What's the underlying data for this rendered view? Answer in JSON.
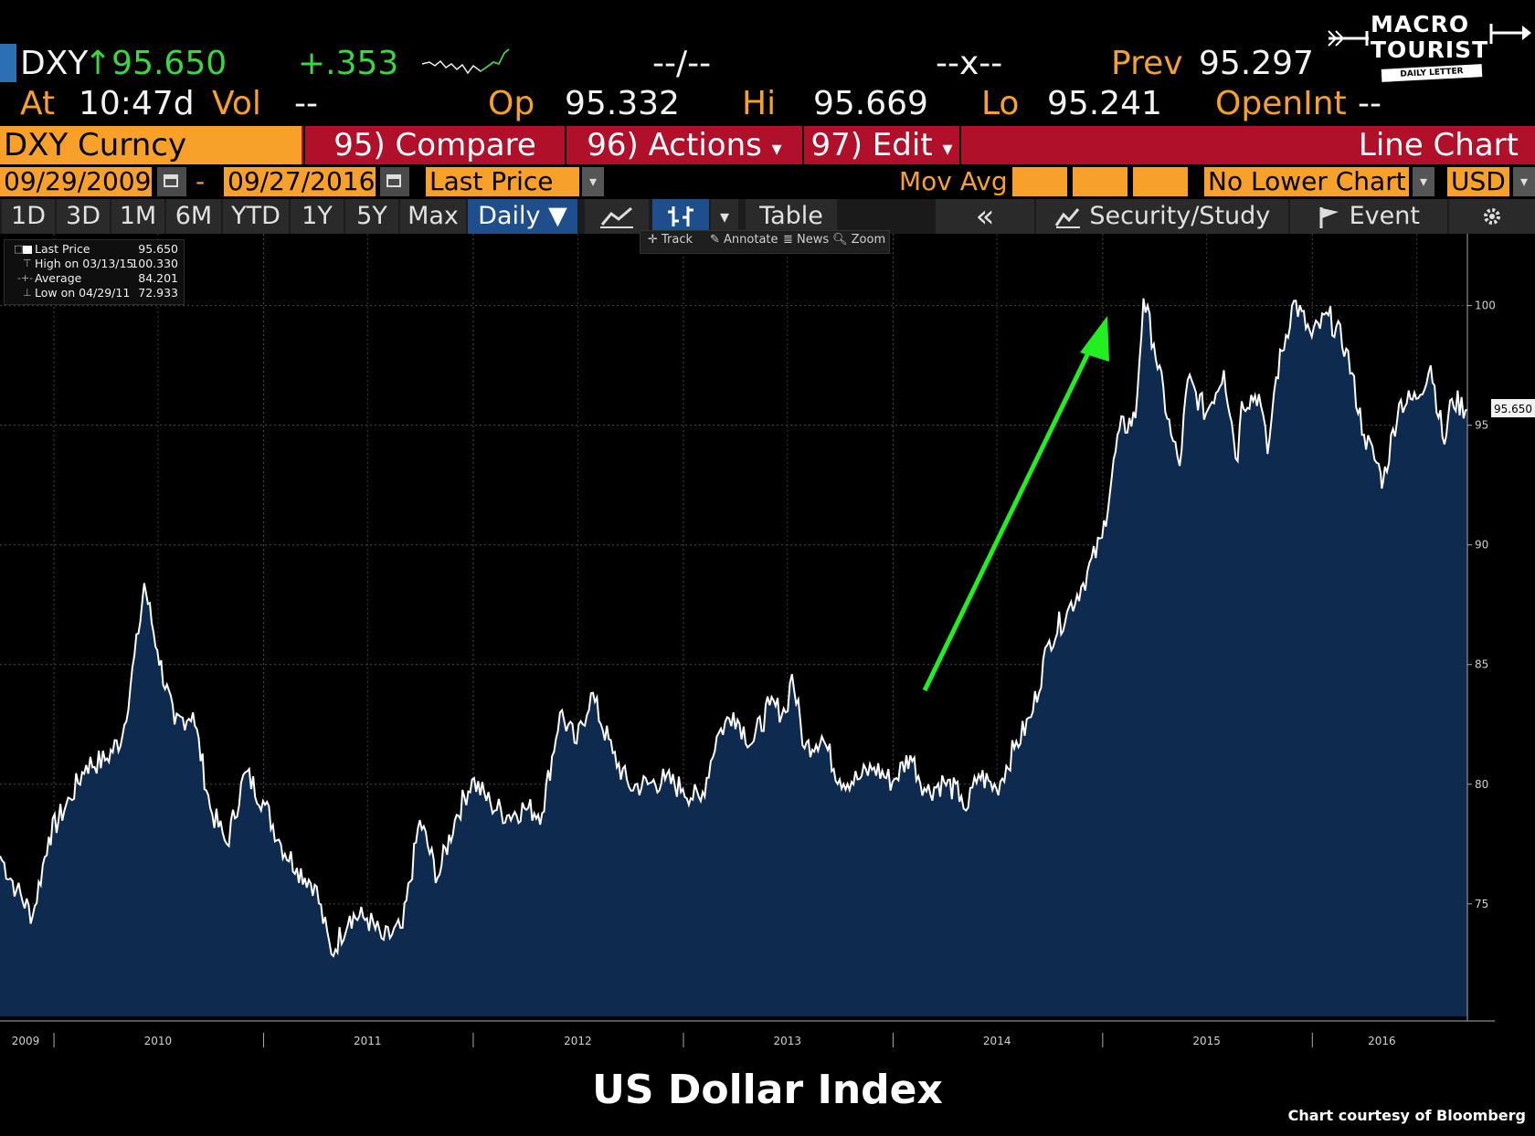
{
  "header": {
    "ticker": "DXY",
    "last": "↑95.650",
    "change": "+.353",
    "bidask": "--/--",
    "size": "--x--",
    "prev_label": "Prev",
    "prev": "95.297",
    "at_label": "At",
    "time": "10:47d",
    "vol_label": "Vol",
    "vol": "--",
    "op_label": "Op",
    "op": "95.332",
    "hi_label": "Hi",
    "hi": "95.669",
    "lo_label": "Lo",
    "lo": "95.241",
    "openint_label": "OpenInt",
    "openint": "--"
  },
  "logo": {
    "line1": "MACRO",
    "line2": "TOURIST",
    "line3": "DAILY LETTER"
  },
  "menubar": {
    "security": "DXY Curncy",
    "compare": "95) Compare",
    "actions": "96) Actions",
    "edit": "97) Edit",
    "chart_type": "Line Chart",
    "dropdown_glyph": "▾"
  },
  "settings": {
    "start_date": "09/29/2009",
    "dash": "-",
    "end_date": "09/27/2016",
    "field": "Last Price",
    "mov_avg": "Mov Avg",
    "lower_chart": "No Lower Chart",
    "currency": "USD",
    "dropdown_glyph": "▾"
  },
  "tabs": {
    "items": [
      "1D",
      "3D",
      "1M",
      "6M",
      "YTD",
      "1Y",
      "5Y",
      "Max"
    ],
    "frequency": "Daily ▼",
    "table": "Table",
    "collapse": "«",
    "security_study": "Security/Study",
    "event": "Event",
    "dropdown_glyph": "▾"
  },
  "tools": {
    "track": "Track",
    "annotate": "Annotate",
    "news": "News",
    "zoom": "Zoom"
  },
  "legend": [
    {
      "symbol": "□",
      "label": "Last Price",
      "value": "95.650"
    },
    {
      "symbol": "⊤",
      "label": "High on 03/13/15",
      "value": "100.330"
    },
    {
      "symbol": "-+-",
      "label": "Average",
      "value": "84.201"
    },
    {
      "symbol": "⊥",
      "label": "Low on 04/29/11",
      "value": "72.933"
    }
  ],
  "colors": {
    "amber": "#f7a12a",
    "green": "#38d843",
    "menu_red": "#b0102a",
    "fill": "#0e2a4e",
    "line": "#ffffff",
    "arrow": "#22ee22"
  },
  "chart_data": {
    "type": "area",
    "title": "US Dollar Index",
    "xlabel": "",
    "ylabel": "",
    "ylim": [
      70.3,
      103
    ],
    "xlim": [
      "2009-09-29",
      "2016-09-27"
    ],
    "x_ticks": [
      "2009",
      "2010",
      "2011",
      "2012",
      "2013",
      "2014",
      "2015",
      "2016"
    ],
    "y_ticks": [
      75,
      80,
      85,
      90,
      95,
      100
    ],
    "last_value_label": "95.650",
    "grid": true,
    "annotation": "green upward arrow pointing to the mid-2014 to early-2015 rally",
    "series": [
      {
        "name": "Last Price",
        "points": [
          [
            "2009-09-29",
            77.0
          ],
          [
            "2009-10-28",
            75.6
          ],
          [
            "2009-11-25",
            74.5
          ],
          [
            "2009-12-23",
            77.8
          ],
          [
            "2010-01-29",
            79.4
          ],
          [
            "2010-02-26",
            80.8
          ],
          [
            "2010-03-31",
            81.0
          ],
          [
            "2010-04-30",
            82.0
          ],
          [
            "2010-05-28",
            86.3
          ],
          [
            "2010-06-07",
            88.4
          ],
          [
            "2010-06-30",
            85.6
          ],
          [
            "2010-07-30",
            82.5
          ],
          [
            "2010-08-31",
            83.0
          ],
          [
            "2010-09-30",
            79.0
          ],
          [
            "2010-10-29",
            77.5
          ],
          [
            "2010-11-30",
            80.5
          ],
          [
            "2010-12-31",
            79.3
          ],
          [
            "2011-01-31",
            77.5
          ],
          [
            "2011-02-28",
            76.5
          ],
          [
            "2011-03-31",
            75.8
          ],
          [
            "2011-04-29",
            72.9
          ],
          [
            "2011-05-31",
            74.5
          ],
          [
            "2011-06-30",
            74.4
          ],
          [
            "2011-07-29",
            73.5
          ],
          [
            "2011-08-31",
            74.0
          ],
          [
            "2011-09-30",
            78.5
          ],
          [
            "2011-10-31",
            76.1
          ],
          [
            "2011-11-30",
            78.5
          ],
          [
            "2011-12-30",
            80.2
          ],
          [
            "2012-01-31",
            79.2
          ],
          [
            "2012-02-29",
            78.7
          ],
          [
            "2012-03-30",
            79.0
          ],
          [
            "2012-04-30",
            78.8
          ],
          [
            "2012-05-31",
            83.0
          ],
          [
            "2012-06-29",
            81.7
          ],
          [
            "2012-07-24",
            83.8
          ],
          [
            "2012-08-31",
            81.3
          ],
          [
            "2012-09-28",
            79.9
          ],
          [
            "2012-10-31",
            80.0
          ],
          [
            "2012-11-30",
            80.2
          ],
          [
            "2012-12-31",
            79.8
          ],
          [
            "2013-01-31",
            79.3
          ],
          [
            "2013-02-28",
            82.0
          ],
          [
            "2013-03-29",
            83.0
          ],
          [
            "2013-04-30",
            81.7
          ],
          [
            "2013-05-31",
            83.3
          ],
          [
            "2013-06-28",
            83.0
          ],
          [
            "2013-07-09",
            84.6
          ],
          [
            "2013-07-31",
            81.5
          ],
          [
            "2013-08-30",
            82.0
          ],
          [
            "2013-09-30",
            80.2
          ],
          [
            "2013-10-31",
            80.2
          ],
          [
            "2013-11-29",
            80.7
          ],
          [
            "2013-12-31",
            80.1
          ],
          [
            "2014-01-31",
            81.2
          ],
          [
            "2014-02-28",
            79.7
          ],
          [
            "2014-03-31",
            80.1
          ],
          [
            "2014-04-30",
            79.5
          ],
          [
            "2014-05-08",
            78.9
          ],
          [
            "2014-05-30",
            80.4
          ],
          [
            "2014-06-30",
            79.8
          ],
          [
            "2014-07-31",
            81.5
          ],
          [
            "2014-08-29",
            82.8
          ],
          [
            "2014-09-30",
            86.0
          ],
          [
            "2014-10-31",
            87.2
          ],
          [
            "2014-11-28",
            88.4
          ],
          [
            "2014-12-31",
            90.3
          ],
          [
            "2015-01-30",
            94.8
          ],
          [
            "2015-02-27",
            95.3
          ],
          [
            "2015-03-13",
            100.3
          ],
          [
            "2015-03-31",
            98.4
          ],
          [
            "2015-04-30",
            94.6
          ],
          [
            "2015-05-15",
            93.3
          ],
          [
            "2015-05-29",
            96.9
          ],
          [
            "2015-06-30",
            95.5
          ],
          [
            "2015-07-31",
            97.3
          ],
          [
            "2015-08-24",
            93.5
          ],
          [
            "2015-08-31",
            96.0
          ],
          [
            "2015-09-30",
            96.3
          ],
          [
            "2015-10-15",
            93.8
          ],
          [
            "2015-10-30",
            97.0
          ],
          [
            "2015-11-30",
            100.2
          ],
          [
            "2015-12-31",
            98.7
          ],
          [
            "2016-01-29",
            99.6
          ],
          [
            "2016-02-29",
            98.2
          ],
          [
            "2016-03-31",
            94.6
          ],
          [
            "2016-04-29",
            93.0
          ],
          [
            "2016-05-03",
            92.6
          ],
          [
            "2016-05-31",
            95.9
          ],
          [
            "2016-06-30",
            96.1
          ],
          [
            "2016-07-25",
            97.5
          ],
          [
            "2016-08-18",
            94.2
          ],
          [
            "2016-08-31",
            96.1
          ],
          [
            "2016-09-27",
            95.65
          ]
        ]
      }
    ]
  },
  "footer": {
    "title": "US Dollar Index",
    "credit": "Chart courtesy of Bloomberg"
  }
}
